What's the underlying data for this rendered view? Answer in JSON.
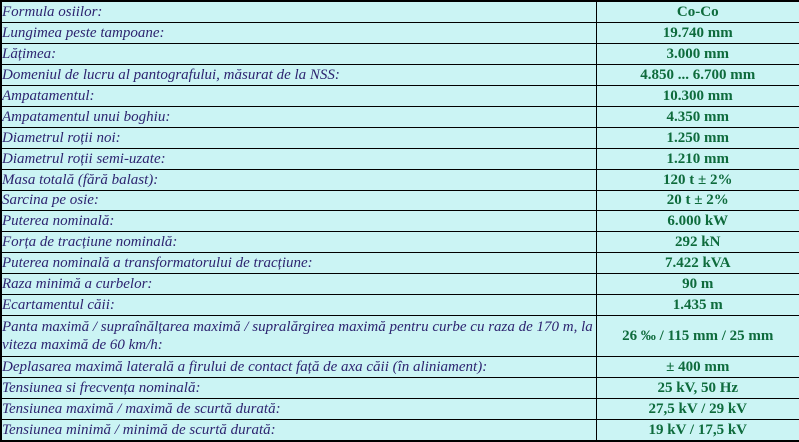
{
  "table": {
    "rows": [
      {
        "label": "Formula osiilor:",
        "value": "Co-Co"
      },
      {
        "label": "Lungimea peste tampoane:",
        "value": "19.740 mm"
      },
      {
        "label": "Lățimea:",
        "value": "3.000 mm"
      },
      {
        "label": "Domeniul de lucru al pantografului, măsurat de la NSS:",
        "value": "4.850 ... 6.700 mm"
      },
      {
        "label": "Ampatamentul:",
        "value": "10.300 mm"
      },
      {
        "label": "Ampatamentul unui boghiu:",
        "value": "4.350 mm"
      },
      {
        "label": "Diametrul roții noi:",
        "value": "1.250 mm"
      },
      {
        "label": "Diametrul roții semi-uzate:",
        "value": "1.210 mm"
      },
      {
        "label": "Masa totală (fără balast):",
        "value": "120 t ± 2%"
      },
      {
        "label": "Sarcina pe osie:",
        "value": "20 t ± 2%"
      },
      {
        "label": "Puterea nominală:",
        "value": "6.000 kW"
      },
      {
        "label": "Forța de tracțiune nominală:",
        "value": "292 kN"
      },
      {
        "label": "Puterea nominală a transformatorului de tracțiune:",
        "value": "7.422 kVA"
      },
      {
        "label": "Raza minimă a curbelor:",
        "value": "90 m"
      },
      {
        "label": "Ecartamentul căii:",
        "value": "1.435 m"
      },
      {
        "label": "Panta maximă / supraînălțarea maximă / supralărgirea maximă pentru curbe cu raza de 170 m, la viteza maximă de 60 km/h:",
        "value": "26 ‰ / 115 mm / 25 mm",
        "tall": true
      },
      {
        "label": "Deplasarea maximă laterală a firului de contact față de axa căii (în aliniament):",
        "value": "± 400 mm"
      },
      {
        "label": "Tensiunea si frecvența nominală:",
        "value": "25 kV, 50 Hz"
      },
      {
        "label": "Tensiunea maximă / maximă de scurtă durată:",
        "value": "27,5 kV / 29 kV"
      },
      {
        "label": "Tensiunea minimă / minimă de scurtă durată:",
        "value": "19 kV / 17,5 kV"
      }
    ]
  },
  "colors": {
    "background": "#cbf4f4",
    "label_text": "#2d2470",
    "value_text": "#0e6b3c",
    "border": "#000000"
  }
}
